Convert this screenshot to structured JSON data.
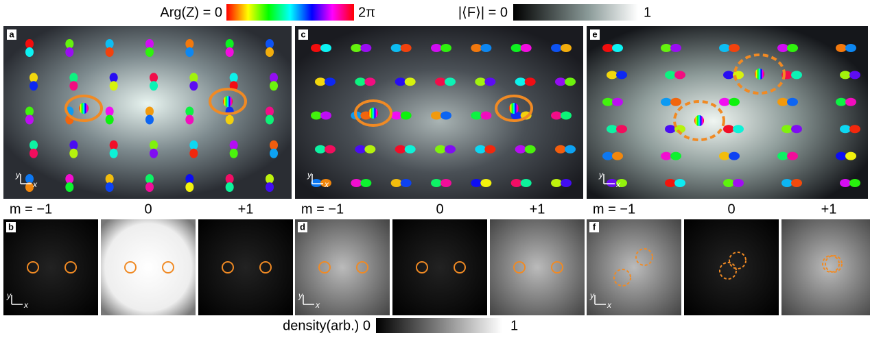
{
  "colorbars": {
    "phase": {
      "left_label": "Arg(Z) = 0",
      "right_label": "2π"
    },
    "magnetization": {
      "left_label": "|⟨F⟩| = 0",
      "right_label": "1"
    },
    "density": {
      "left_label": "density(arb.) 0",
      "right_label": "1"
    }
  },
  "top_panels": [
    {
      "label": "a",
      "axes": {
        "y": "y",
        "x": "x"
      }
    },
    {
      "label": "c",
      "axes": {
        "y": "y",
        "x": "x"
      }
    },
    {
      "label": "e",
      "axes": {
        "y": "y",
        "x": "x"
      }
    }
  ],
  "bottom_panels": [
    {
      "label": "b",
      "axes": {
        "y": "y",
        "x": "x"
      },
      "components": [
        "m = −1",
        "0",
        "+1"
      ]
    },
    {
      "label": "d",
      "axes": {
        "y": "y",
        "x": "x"
      },
      "components": [
        "m = −1",
        "0",
        "+1"
      ]
    },
    {
      "label": "f",
      "axes": {
        "y": "y",
        "x": "x"
      },
      "components": [
        "m = −1",
        "0",
        "+1"
      ]
    }
  ]
}
